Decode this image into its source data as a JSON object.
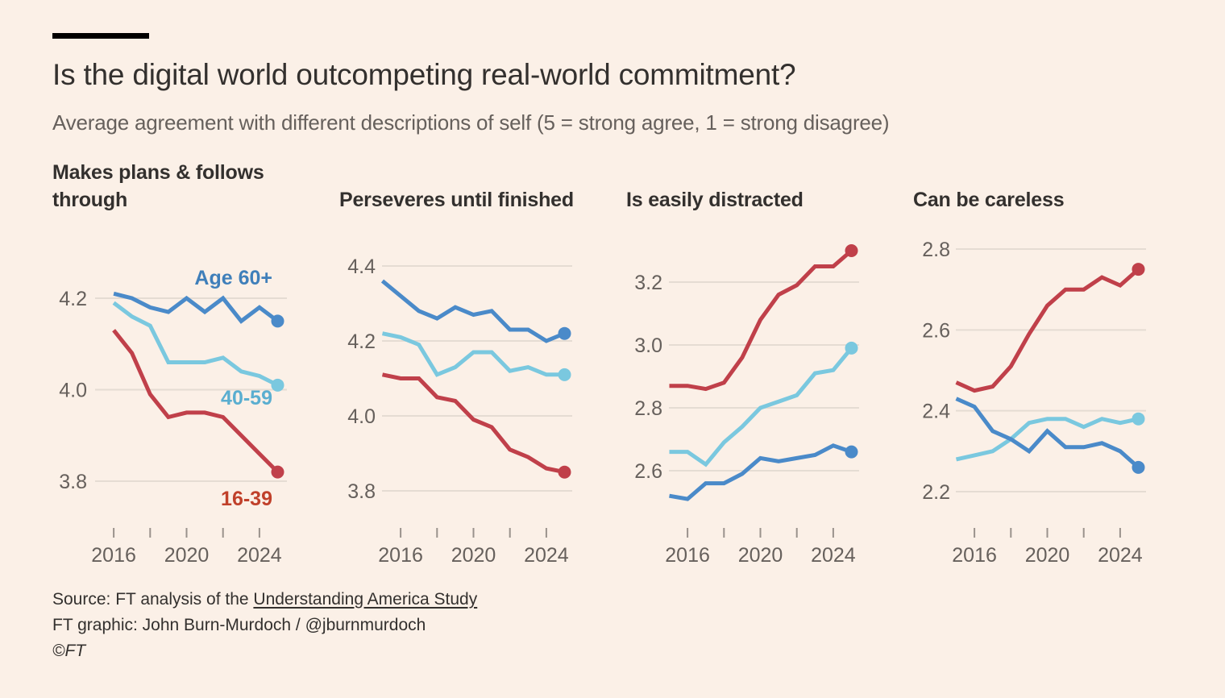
{
  "header": {
    "title": "Is the digital world outcompeting real-world commitment?",
    "subtitle": "Average agreement with different descriptions of self (5 = strong agree, 1 = strong disagree)"
  },
  "colors": {
    "age_16_39": "#c0404a",
    "age_40_59": "#7ac8df",
    "age_60_plus": "#4a8ac9",
    "label_16_39": "#c0402a",
    "label_40_59": "#5aaed0",
    "label_60_plus": "#3f7fba",
    "gridline": "#e5dcd3",
    "tick": "#9a928c",
    "axis_text": "#66605c",
    "background": "#fbf0e7"
  },
  "chart_data": [
    {
      "type": "line",
      "title": "Makes plans & follows through",
      "xlabel": "",
      "ylabel": "",
      "xlim": [
        2015,
        2025
      ],
      "ylim": [
        3.7,
        4.3
      ],
      "yticks": [
        3.8,
        4.0,
        4.2
      ],
      "ytick_labels": [
        "3.8",
        "4.0",
        "4.2"
      ],
      "xticks": [
        2016,
        2018,
        2020,
        2022,
        2024
      ],
      "xtick_labels": [
        "2016",
        "",
        "2020",
        "",
        "2024"
      ],
      "grid": true,
      "x": [
        2016,
        2017,
        2018,
        2019,
        2020,
        2021,
        2022,
        2023,
        2024,
        2025
      ],
      "series": [
        {
          "name": "Age 60+",
          "key": "age_60_plus",
          "label": "Age 60+",
          "values": [
            4.21,
            4.2,
            4.18,
            4.17,
            4.2,
            4.17,
            4.2,
            4.15,
            4.18,
            4.15
          ]
        },
        {
          "name": "40-59",
          "key": "age_40_59",
          "label": "40-59",
          "values": [
            4.19,
            4.16,
            4.14,
            4.06,
            4.06,
            4.06,
            4.07,
            4.04,
            4.03,
            4.01
          ]
        },
        {
          "name": "16-39",
          "key": "age_16_39",
          "label": "16-39",
          "values": [
            4.13,
            4.08,
            3.99,
            3.94,
            3.95,
            3.95,
            3.94,
            3.9,
            3.86,
            3.82
          ]
        }
      ]
    },
    {
      "type": "line",
      "title": "Perseveres until finished",
      "xlabel": "",
      "ylabel": "",
      "xlim": [
        2015,
        2025
      ],
      "ylim": [
        3.7,
        4.45
      ],
      "yticks": [
        3.8,
        4.0,
        4.2,
        4.4
      ],
      "ytick_labels": [
        "3.8",
        "4.0",
        "4.2",
        "4.4"
      ],
      "xticks": [
        2016,
        2018,
        2020,
        2022,
        2024
      ],
      "xtick_labels": [
        "2016",
        "",
        "2020",
        "",
        "2024"
      ],
      "grid": true,
      "x": [
        2015,
        2016,
        2017,
        2018,
        2019,
        2020,
        2021,
        2022,
        2023,
        2024,
        2025
      ],
      "series": [
        {
          "name": "Age 60+",
          "key": "age_60_plus",
          "values": [
            4.36,
            4.32,
            4.28,
            4.26,
            4.29,
            4.27,
            4.28,
            4.23,
            4.23,
            4.2,
            4.22
          ]
        },
        {
          "name": "40-59",
          "key": "age_40_59",
          "values": [
            4.22,
            4.21,
            4.19,
            4.11,
            4.13,
            4.17,
            4.17,
            4.12,
            4.13,
            4.11,
            4.11
          ]
        },
        {
          "name": "16-39",
          "key": "age_16_39",
          "values": [
            4.11,
            4.1,
            4.1,
            4.05,
            4.04,
            3.99,
            3.97,
            3.91,
            3.89,
            3.86,
            3.85
          ]
        }
      ]
    },
    {
      "type": "line",
      "title": "Is easily distracted",
      "xlabel": "",
      "ylabel": "",
      "xlim": [
        2015,
        2025
      ],
      "ylim": [
        2.45,
        3.35
      ],
      "yticks": [
        2.6,
        2.8,
        3.0,
        3.2
      ],
      "ytick_labels": [
        "2.6",
        "2.8",
        "3.0",
        "3.2"
      ],
      "xticks": [
        2016,
        2018,
        2020,
        2022,
        2024
      ],
      "xtick_labels": [
        "2016",
        "",
        "2020",
        "",
        "2024"
      ],
      "grid": true,
      "x": [
        2015,
        2016,
        2017,
        2018,
        2019,
        2020,
        2021,
        2022,
        2023,
        2024,
        2025
      ],
      "series": [
        {
          "name": "Age 60+",
          "key": "age_60_plus",
          "values": [
            2.52,
            2.51,
            2.56,
            2.56,
            2.59,
            2.64,
            2.63,
            2.64,
            2.65,
            2.68,
            2.66
          ]
        },
        {
          "name": "40-59",
          "key": "age_40_59",
          "values": [
            2.66,
            2.66,
            2.62,
            2.69,
            2.74,
            2.8,
            2.82,
            2.84,
            2.91,
            2.92,
            2.99
          ]
        },
        {
          "name": "16-39",
          "key": "age_16_39",
          "values": [
            2.87,
            2.87,
            2.86,
            2.88,
            2.96,
            3.08,
            3.16,
            3.19,
            3.25,
            3.25,
            3.3
          ]
        }
      ]
    },
    {
      "type": "line",
      "title": "Can be careless",
      "xlabel": "",
      "ylabel": "",
      "xlim": [
        2015,
        2025
      ],
      "ylim": [
        2.13,
        2.83
      ],
      "yticks": [
        2.2,
        2.4,
        2.6,
        2.8
      ],
      "ytick_labels": [
        "2.2",
        "2.4",
        "2.6",
        "2.8"
      ],
      "xticks": [
        2016,
        2018,
        2020,
        2022,
        2024
      ],
      "xtick_labels": [
        "2016",
        "",
        "2020",
        "",
        "2024"
      ],
      "grid": true,
      "x": [
        2015,
        2016,
        2017,
        2018,
        2019,
        2020,
        2021,
        2022,
        2023,
        2024,
        2025
      ],
      "series": [
        {
          "name": "Age 60+",
          "key": "age_60_plus",
          "values": [
            2.43,
            2.41,
            2.35,
            2.33,
            2.3,
            2.35,
            2.31,
            2.31,
            2.32,
            2.3,
            2.26
          ]
        },
        {
          "name": "40-59",
          "key": "age_40_59",
          "values": [
            2.28,
            2.29,
            2.3,
            2.33,
            2.37,
            2.38,
            2.38,
            2.36,
            2.38,
            2.37,
            2.38
          ]
        },
        {
          "name": "16-39",
          "key": "age_16_39",
          "values": [
            2.47,
            2.45,
            2.46,
            2.51,
            2.59,
            2.66,
            2.7,
            2.7,
            2.73,
            2.71,
            2.75
          ]
        }
      ]
    }
  ],
  "footer": {
    "source_prefix": "Source: FT analysis of the ",
    "source_link": "Understanding America Study",
    "credit": "FT graphic: John Burn-Murdoch / @jburnmurdoch",
    "copyright": "©FT"
  }
}
